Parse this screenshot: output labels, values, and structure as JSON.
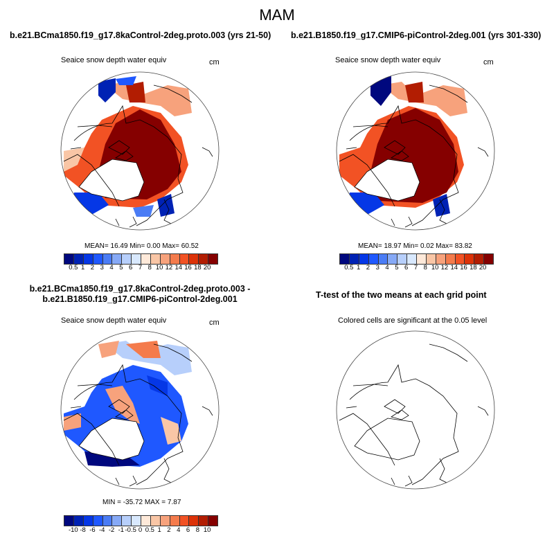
{
  "title": "MAM",
  "palette": [
    "#00087e",
    "#0022b4",
    "#0537e6",
    "#1f58ff",
    "#4a7cf5",
    "#86a9f6",
    "#b7cffb",
    "#d8e8fd",
    "#fee9d9",
    "#f9c6a6",
    "#f7a27c",
    "#f47b4c",
    "#f25224",
    "#dc3208",
    "#b21d02",
    "#850000"
  ],
  "panels": [
    {
      "title": "b.e21.BCma1850.f19_g17.8kaControl-2deg.proto.003 (yrs 21-50)",
      "left_string": "Seaice snow depth water equiv",
      "right_string": "cm",
      "stats": "MEAN=  16.49  Min=   0.00  Max=  60.52",
      "colorbar_labels": [
        "0.5",
        "1",
        "2",
        "3",
        "4",
        "5",
        "6",
        "7",
        "8",
        "10",
        "12",
        "14",
        "16",
        "18",
        "20"
      ]
    },
    {
      "title": "b.e21.B1850.f19_g17.CMIP6-piControl-2deg.001 (yrs 301-330)",
      "left_string": "Seaice snow depth water equiv",
      "right_string": "cm",
      "stats": "MEAN=  18.97  Min=   0.02  Max=  83.82",
      "colorbar_labels": [
        "0.5",
        "1",
        "2",
        "3",
        "4",
        "5",
        "6",
        "7",
        "8",
        "10",
        "12",
        "14",
        "16",
        "18",
        "20"
      ]
    },
    {
      "title": "b.e21.BCma1850.f19_g17.8kaControl-2deg.proto.003 - b.e21.B1850.f19_g17.CMIP6-piControl-2deg.001",
      "left_string": "Seaice snow depth water equiv",
      "right_string": "cm",
      "stats": "MIN = -35.72 MAX =   7.87",
      "colorbar_labels": [
        "-10",
        "-8",
        "-6",
        "-4",
        "-2",
        "-1",
        "-0.5",
        "0",
        "0.5",
        "1",
        "2",
        "4",
        "6",
        "8",
        "10"
      ]
    },
    {
      "title": "T-test of the two means at each grid point",
      "center_string": "Colored cells are significant at the 0.05 level"
    }
  ]
}
